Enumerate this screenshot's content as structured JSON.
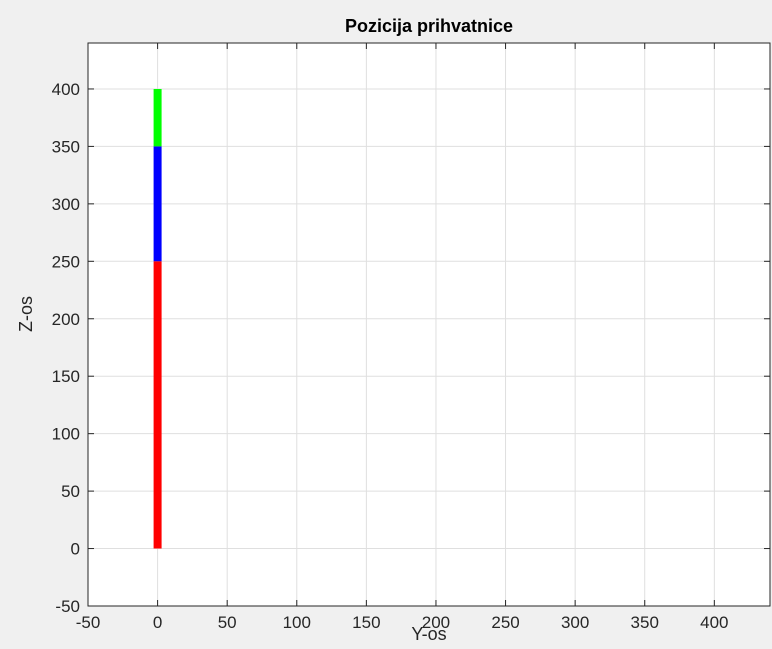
{
  "window": {
    "background": "#f0f0f0"
  },
  "chart_data": {
    "type": "line",
    "title": "Pozicija prihvatnice",
    "xlabel": "Y-os",
    "ylabel": "Z-os",
    "xlim": [
      -50,
      440
    ],
    "ylim": [
      -50,
      440
    ],
    "xticks": [
      -50,
      0,
      50,
      100,
      150,
      200,
      250,
      300,
      350,
      400
    ],
    "yticks": [
      -50,
      0,
      50,
      100,
      150,
      200,
      250,
      300,
      350,
      400
    ],
    "grid": true,
    "series": [
      {
        "color": "#ff0000",
        "x": [
          0,
          0
        ],
        "y": [
          0,
          250
        ]
      },
      {
        "color": "#0000ff",
        "x": [
          0,
          0
        ],
        "y": [
          250,
          350
        ]
      },
      {
        "color": "#00ff00",
        "x": [
          0,
          0
        ],
        "y": [
          350,
          400
        ]
      }
    ]
  }
}
